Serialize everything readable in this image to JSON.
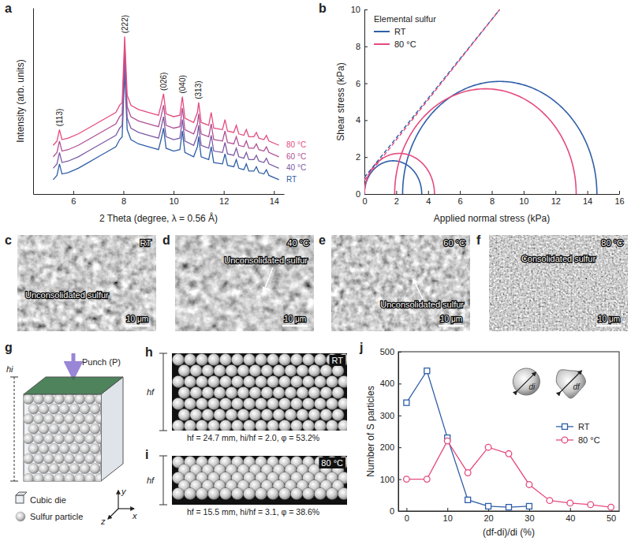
{
  "chart_data": [
    {
      "panel": "a",
      "type": "line",
      "x_label": "2 Theta (degree, λ = 0.56 Å)",
      "y_label": "Intensity (arb. units)",
      "x": [
        5.2,
        5.35,
        5.45,
        5.55,
        5.8,
        6.2,
        6.6,
        7.0,
        7.4,
        7.7,
        7.85,
        7.95,
        8.05,
        8.15,
        8.3,
        8.6,
        9.0,
        9.4,
        9.5,
        9.6,
        9.7,
        10.0,
        10.25,
        10.35,
        10.45,
        10.8,
        10.95,
        11.0,
        11.1,
        11.4,
        11.5,
        11.6,
        11.95,
        12.05,
        12.15,
        12.4,
        12.5,
        12.6,
        12.8,
        12.9,
        13.0,
        13.2,
        13.3,
        13.4,
        13.6,
        13.7,
        13.8,
        14.2
      ],
      "series": [
        {
          "name": "RT",
          "color": "#2f5ea8",
          "values": [
            10,
            13,
            21,
            14,
            15,
            18,
            22,
            26,
            30,
            33,
            38,
            40,
            86,
            45,
            38,
            35,
            33,
            31,
            38,
            46,
            32,
            30,
            31,
            44,
            29,
            26,
            33,
            40,
            26,
            24,
            33,
            22,
            21,
            28,
            20,
            19,
            24,
            18,
            17,
            21,
            16,
            16,
            19,
            15,
            14,
            17,
            13,
            10
          ]
        },
        {
          "name": "40 °C",
          "color": "#7b5aa6",
          "values": [
            18,
            21,
            29,
            22,
            23,
            26,
            30,
            34,
            38,
            41,
            46,
            48,
            94,
            53,
            46,
            43,
            41,
            39,
            46,
            54,
            40,
            38,
            39,
            52,
            37,
            34,
            41,
            48,
            34,
            32,
            41,
            30,
            29,
            36,
            28,
            27,
            32,
            26,
            25,
            29,
            24,
            24,
            27,
            23,
            22,
            25,
            21,
            18
          ]
        },
        {
          "name": "60 °C",
          "color": "#b04f95",
          "values": [
            26,
            29,
            37,
            30,
            31,
            34,
            38,
            42,
            46,
            49,
            54,
            56,
            102,
            61,
            54,
            51,
            49,
            47,
            54,
            62,
            48,
            46,
            47,
            60,
            45,
            42,
            49,
            56,
            42,
            40,
            49,
            38,
            37,
            44,
            36,
            35,
            40,
            34,
            33,
            37,
            32,
            32,
            35,
            31,
            30,
            33,
            29,
            26
          ]
        },
        {
          "name": "80 °C",
          "color": "#e54b7e",
          "values": [
            34,
            37,
            45,
            38,
            39,
            42,
            46,
            50,
            54,
            57,
            62,
            64,
            110,
            69,
            62,
            59,
            57,
            55,
            62,
            70,
            56,
            54,
            55,
            68,
            53,
            50,
            57,
            64,
            50,
            48,
            57,
            46,
            45,
            52,
            44,
            43,
            48,
            42,
            41,
            45,
            40,
            40,
            43,
            39,
            38,
            41,
            37,
            34
          ]
        }
      ],
      "xlim": [
        4.4,
        14.4
      ],
      "xticks": [
        6,
        8,
        10,
        12,
        14
      ],
      "ylim": [
        0,
        130
      ],
      "tick_labels": "x",
      "annotations": [
        {
          "text": "(113)",
          "x": 5.45
        },
        {
          "text": "(222)",
          "x": 8.05
        },
        {
          "text": "(026)",
          "x": 9.6
        },
        {
          "text": "(040)",
          "x": 10.35
        },
        {
          "text": "(313)",
          "x": 11.0
        }
      ]
    },
    {
      "panel": "b",
      "type": "mohr",
      "x_label": "Applied normal stress (kPa)",
      "y_label": "Shear stress (kPa)",
      "legend_title": "Elemental sulfur",
      "legend": "upper left",
      "xlim": [
        0,
        16
      ],
      "xticks": [
        0,
        2,
        4,
        6,
        8,
        10,
        12,
        14,
        16
      ],
      "ylim": [
        0,
        10
      ],
      "yticks": [
        0,
        2,
        4,
        6,
        8,
        10
      ],
      "series": [
        {
          "name": "RT",
          "color": "#2f5ea8",
          "circles": [
            [
              0,
              3.6
            ],
            [
              2.4,
              14.6
            ]
          ],
          "yield_locus": {
            "x": [
              0,
              8.5
            ],
            "y": [
              0.9,
              10
            ],
            "line_style": "dashed"
          }
        },
        {
          "name": "80 °C",
          "color": "#e54b7e",
          "circles": [
            [
              0,
              4.4
            ],
            [
              1.9,
              13.3
            ]
          ],
          "yield_locus": {
            "x": [
              0,
              8.5
            ],
            "y": [
              0.75,
              10
            ],
            "line_style": "dashed"
          }
        }
      ]
    },
    {
      "panel": "j",
      "type": "line",
      "x_label": "(df-di)/di (%)",
      "y_label": "Number of S particles",
      "xlim": [
        -2,
        52
      ],
      "xticks": [
        0,
        10,
        20,
        30,
        40,
        50
      ],
      "ylim": [
        0,
        500
      ],
      "yticks": [
        0,
        100,
        200,
        300,
        400,
        500
      ],
      "legend": "right",
      "series": [
        {
          "name": "RT",
          "color": "#2f5ea8",
          "marker": "square",
          "x": [
            0,
            5,
            10,
            15,
            20,
            25,
            30
          ],
          "values": [
            340,
            440,
            230,
            35,
            15,
            12,
            15
          ]
        },
        {
          "name": "80 °C",
          "color": "#e54b7e",
          "marker": "circle",
          "x": [
            0,
            5,
            10,
            15,
            20,
            25,
            30,
            35,
            40,
            45,
            50
          ],
          "values": [
            100,
            100,
            220,
            120,
            200,
            180,
            83,
            33,
            25,
            20,
            12
          ]
        }
      ],
      "inset_labels": [
        "di",
        "df"
      ]
    }
  ],
  "images": [
    {
      "panel": "c",
      "label": "RT",
      "annotation": "Unconsolidated sulfur",
      "scale_bar": "10 μm"
    },
    {
      "panel": "d",
      "label": "40 °C",
      "annotation": "Unconsolidated sulfur",
      "scale_bar": "10 μm"
    },
    {
      "panel": "e",
      "label": "60 °C",
      "annotation": "Unconsolidated sulfur",
      "scale_bar": "10 μm"
    },
    {
      "panel": "f",
      "label": "80 °C",
      "annotation": "Consolidated sulfur",
      "scale_bar": "10 μm"
    }
  ],
  "diagrams": {
    "g": {
      "panel": "g",
      "punch_label": "Punch (P)",
      "height_label": "hi",
      "axes": [
        "x",
        "y",
        "z"
      ],
      "labels": [
        "Cubic die",
        "Sulfur particle"
      ]
    },
    "h": {
      "panel": "h",
      "condition": "RT",
      "height_label": "hf",
      "caption": "hf = 24.7 mm, hi/hf = 2.0, φ = 53.2%"
    },
    "i": {
      "panel": "i",
      "condition": "80 °C",
      "height_label": "hf",
      "caption": "hf = 15.5 mm, hi/hf = 3.1, φ = 38.6%"
    }
  }
}
